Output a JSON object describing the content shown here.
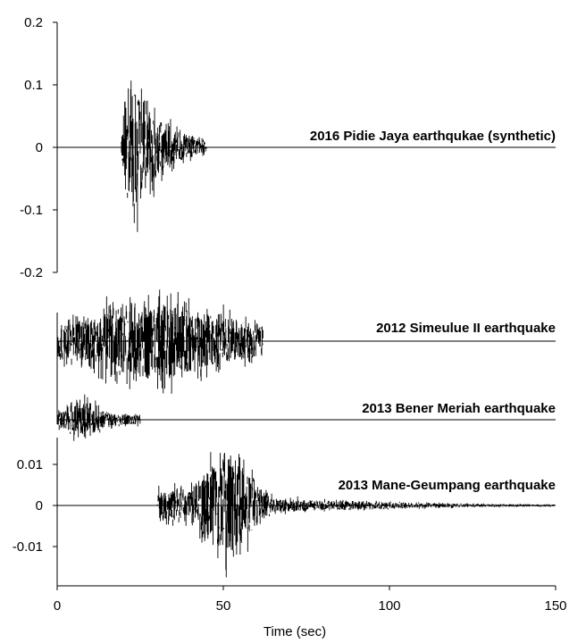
{
  "chart_data": [
    {
      "type": "line",
      "title": "",
      "series": [
        {
          "name": "2016 Pidie Jaya earthquake (synthetic)",
          "label": "2016 Pidie Jaya earthqukae (synthetic)"
        }
      ],
      "xlim": [
        0,
        150
      ],
      "ylim": [
        -0.2,
        0.2
      ],
      "yticks": [
        "0.2",
        "0.1",
        "0",
        "-0.1",
        "-0.2"
      ],
      "yticks_values": [
        0.2,
        0.1,
        0,
        -0.1,
        -0.2
      ],
      "signal": {
        "start": 19,
        "end": 45,
        "peak_time": 22,
        "amplitude": 0.19,
        "shape": "impulsive decay"
      }
    },
    {
      "type": "line",
      "series": [
        {
          "name": "2012 Simeulue II earthquake",
          "label": "2012 Simeulue II earthquake"
        }
      ],
      "xlim": [
        0,
        150
      ],
      "signal": {
        "start": 0,
        "end": 62,
        "peak_time": 30,
        "relative_amplitude": 1.0,
        "shape": "broad envelope"
      }
    },
    {
      "type": "line",
      "series": [
        {
          "name": "2013 Bener Meriah earthquake",
          "label": "2013 Bener Meriah earthquake"
        }
      ],
      "xlim": [
        0,
        150
      ],
      "signal": {
        "start": 0,
        "end": 25,
        "peak_time": 8,
        "relative_amplitude": 0.55,
        "shape": "early burst"
      }
    },
    {
      "type": "line",
      "series": [
        {
          "name": "2013 Mane-Geumpang earthquake",
          "label": "2013 Mane-Geumpang earthquake"
        }
      ],
      "xlim": [
        0,
        150
      ],
      "ylim": [
        -0.02,
        0.02
      ],
      "xlabel": "Time (sec)",
      "xticks": [
        "0",
        "50",
        "100",
        "150"
      ],
      "xticks_values": [
        0,
        50,
        100,
        150
      ],
      "yticks": [
        "0.01",
        "0",
        "-0.01"
      ],
      "yticks_values": [
        0.01,
        0,
        -0.01
      ],
      "signal": {
        "start": 30,
        "end": 150,
        "peak_time": 51,
        "amplitude": 0.019,
        "shape": "onset then long coda"
      }
    }
  ]
}
